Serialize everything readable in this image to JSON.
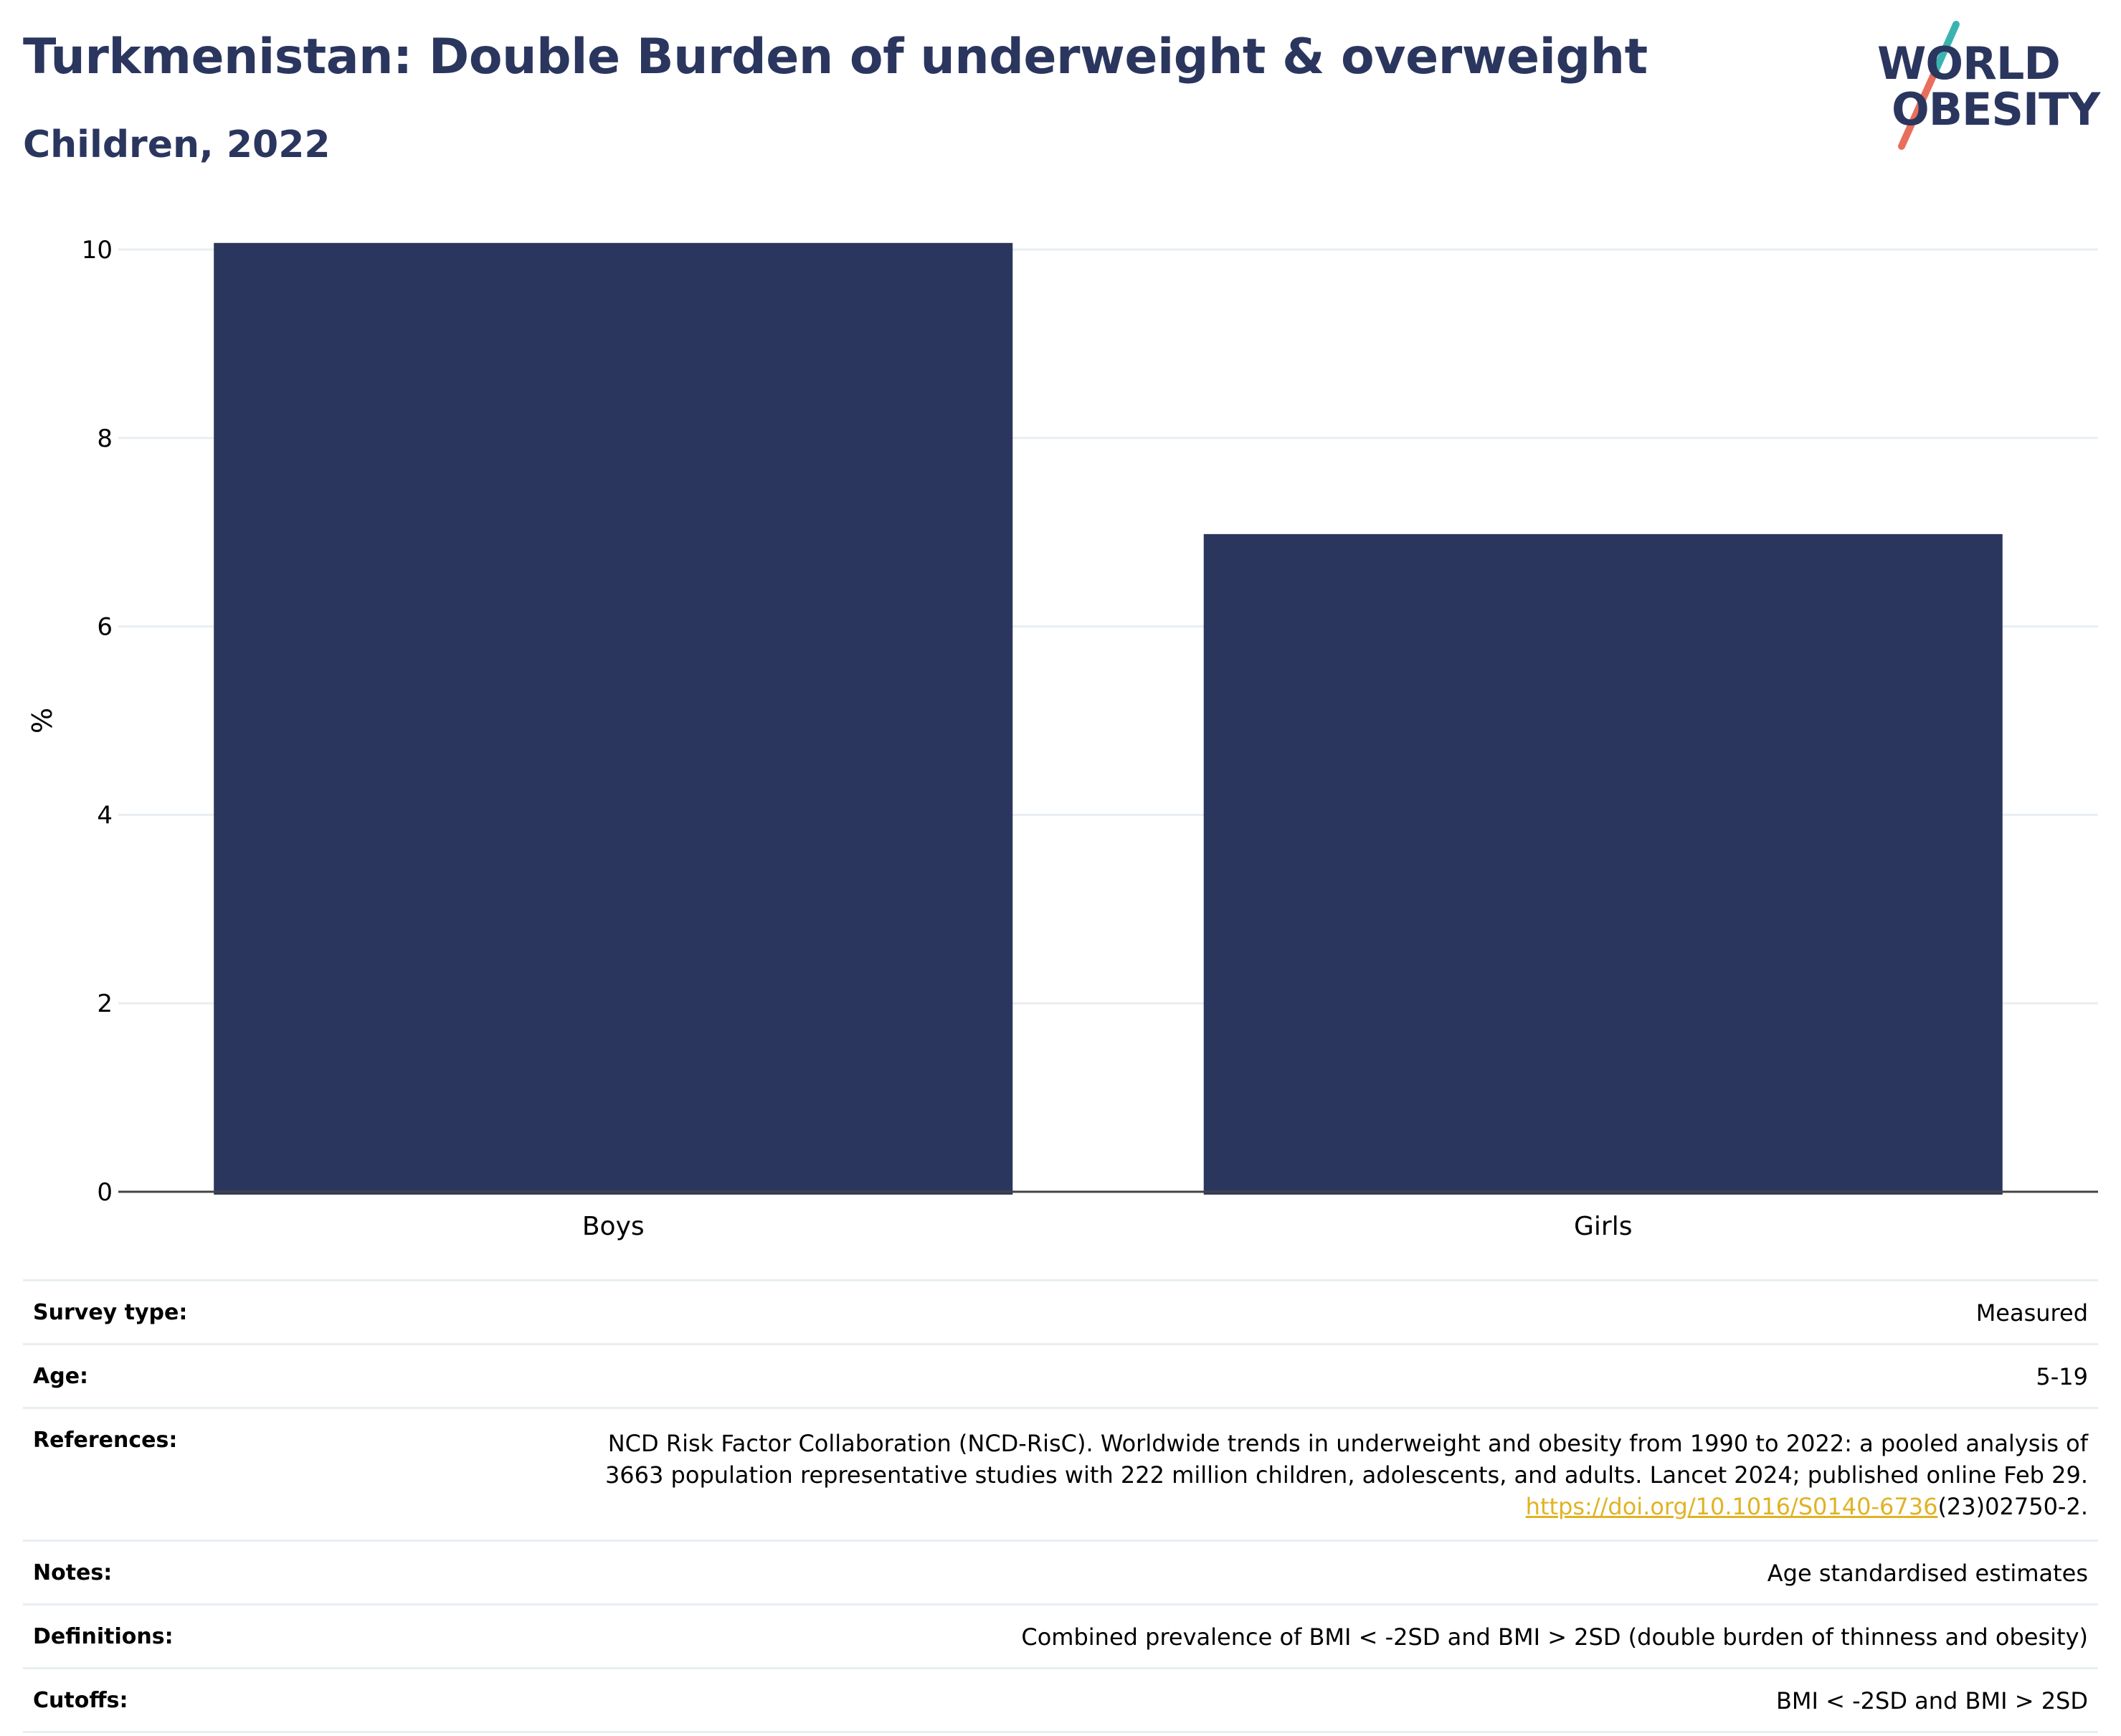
{
  "header": {
    "title": "Turkmenistan: Double Burden of underweight & overweight",
    "subtitle": "Children, 2022"
  },
  "logo": {
    "line1": "WORLD",
    "line2": "OBESITY",
    "colors": {
      "text": "#2b365f",
      "slash_top": "#3bb3b0",
      "slash_bottom": "#e86f5c"
    }
  },
  "chart_data": {
    "type": "bar",
    "categories": [
      "Boys",
      "Girls"
    ],
    "values": [
      10.07,
      6.98
    ],
    "ylabel": "%",
    "xlabel": "",
    "ylim": [
      0,
      10.4
    ],
    "yticks": [
      0,
      2,
      4,
      6,
      8,
      10
    ],
    "grid": true,
    "bar_color": "#2b365f",
    "grid_color": "#e8eef2"
  },
  "info": {
    "survey_type": {
      "label": "Survey type:",
      "value": "Measured"
    },
    "age": {
      "label": "Age:",
      "value": "5-19"
    },
    "references": {
      "label": "References:",
      "line1": "NCD Risk Factor Collaboration (NCD-RisC). Worldwide trends in underweight and obesity from 1990 to 2022: a pooled analysis of",
      "line2": "3663 population representative studies with 222 million children, adolescents, and adults. Lancet 2024; published online Feb 29.",
      "link": "https://doi.org/10.1016/S0140-6736",
      "link_suffix": "(23)02750-2.",
      "link_color": "#e0b324"
    },
    "notes": {
      "label": "Notes:",
      "value": "Age standardised estimates"
    },
    "definitions": {
      "label": "Definitions:",
      "value": "Combined prevalence of BMI < -2SD and BMI > 2SD (double burden of thinness and obesity)"
    },
    "cutoffs": {
      "label": "Cutoffs:",
      "value": "BMI < -2SD and BMI > 2SD"
    }
  }
}
